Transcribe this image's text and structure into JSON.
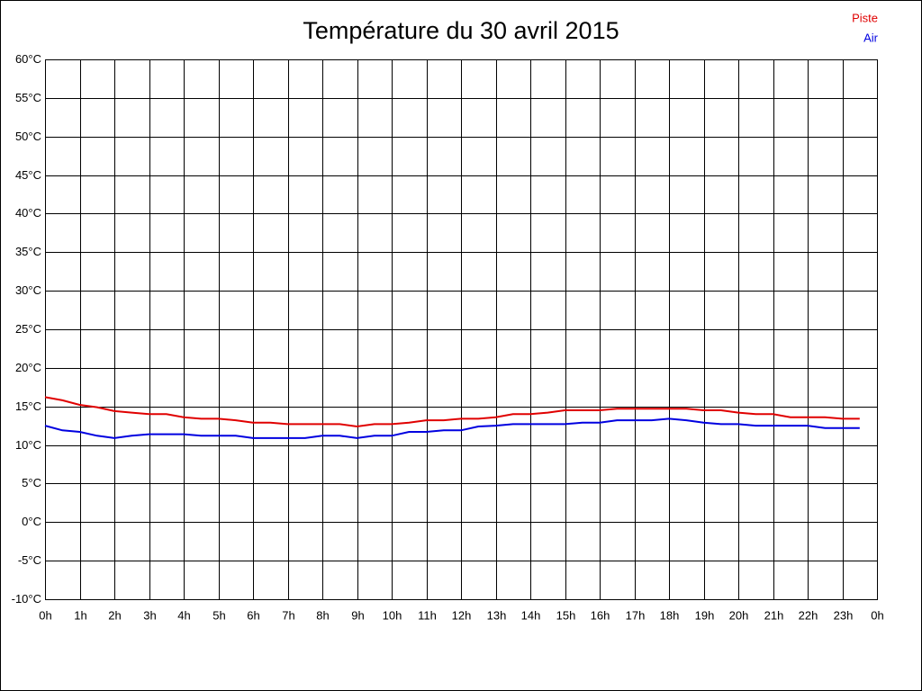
{
  "chart_data": {
    "type": "line",
    "title": "Température du 30 avril 2015",
    "x": [
      0,
      0.5,
      1,
      1.5,
      2,
      2.5,
      3,
      3.5,
      4,
      4.5,
      5,
      5.5,
      6,
      6.5,
      7,
      7.5,
      8,
      8.5,
      9,
      9.5,
      10,
      10.5,
      11,
      11.5,
      12,
      12.5,
      13,
      13.5,
      14,
      14.5,
      15,
      15.5,
      16,
      16.5,
      17,
      17.5,
      18,
      18.5,
      19,
      19.5,
      20,
      20.5,
      21,
      21.5,
      22,
      22.5,
      23,
      23.5
    ],
    "series": [
      {
        "name": "Piste",
        "color": "#e00000",
        "values": [
          16.2,
          15.8,
          15.2,
          14.9,
          14.4,
          14.2,
          14.0,
          14.0,
          13.6,
          13.4,
          13.4,
          13.2,
          12.9,
          12.9,
          12.7,
          12.7,
          12.7,
          12.7,
          12.4,
          12.7,
          12.7,
          12.9,
          13.2,
          13.2,
          13.4,
          13.4,
          13.6,
          14.0,
          14.0,
          14.2,
          14.5,
          14.5,
          14.5,
          14.7,
          14.7,
          14.7,
          14.7,
          14.7,
          14.5,
          14.5,
          14.2,
          14.0,
          14.0,
          13.6,
          13.6,
          13.6,
          13.4,
          13.4
        ]
      },
      {
        "name": "Air",
        "color": "#0000e0",
        "values": [
          12.5,
          11.9,
          11.7,
          11.2,
          10.9,
          11.2,
          11.4,
          11.4,
          11.4,
          11.2,
          11.2,
          11.2,
          10.9,
          10.9,
          10.9,
          10.9,
          11.2,
          11.2,
          10.9,
          11.2,
          11.2,
          11.7,
          11.7,
          11.9,
          11.9,
          12.4,
          12.5,
          12.7,
          12.7,
          12.7,
          12.7,
          12.9,
          12.9,
          13.2,
          13.2,
          13.2,
          13.4,
          13.2,
          12.9,
          12.7,
          12.7,
          12.5,
          12.5,
          12.5,
          12.5,
          12.2,
          12.2,
          12.2
        ]
      }
    ],
    "xlim": [
      0,
      24
    ],
    "xticks": [
      {
        "value": 0,
        "label": "0h"
      },
      {
        "value": 1,
        "label": "1h"
      },
      {
        "value": 2,
        "label": "2h"
      },
      {
        "value": 3,
        "label": "3h"
      },
      {
        "value": 4,
        "label": "4h"
      },
      {
        "value": 5,
        "label": "5h"
      },
      {
        "value": 6,
        "label": "6h"
      },
      {
        "value": 7,
        "label": "7h"
      },
      {
        "value": 8,
        "label": "8h"
      },
      {
        "value": 9,
        "label": "9h"
      },
      {
        "value": 10,
        "label": "10h"
      },
      {
        "value": 11,
        "label": "11h"
      },
      {
        "value": 12,
        "label": "12h"
      },
      {
        "value": 13,
        "label": "13h"
      },
      {
        "value": 14,
        "label": "14h"
      },
      {
        "value": 15,
        "label": "15h"
      },
      {
        "value": 16,
        "label": "16h"
      },
      {
        "value": 17,
        "label": "17h"
      },
      {
        "value": 18,
        "label": "18h"
      },
      {
        "value": 19,
        "label": "19h"
      },
      {
        "value": 20,
        "label": "20h"
      },
      {
        "value": 21,
        "label": "21h"
      },
      {
        "value": 22,
        "label": "22h"
      },
      {
        "value": 23,
        "label": "23h"
      },
      {
        "value": 24,
        "label": "0h"
      }
    ],
    "ylim": [
      -10,
      60
    ],
    "yticks": [
      {
        "value": -10,
        "label": "-10°C"
      },
      {
        "value": -5,
        "label": "-5°C"
      },
      {
        "value": 0,
        "label": "0°C"
      },
      {
        "value": 5,
        "label": "5°C"
      },
      {
        "value": 10,
        "label": "10°C"
      },
      {
        "value": 15,
        "label": "15°C"
      },
      {
        "value": 20,
        "label": "20°C"
      },
      {
        "value": 25,
        "label": "25°C"
      },
      {
        "value": 30,
        "label": "30°C"
      },
      {
        "value": 35,
        "label": "35°C"
      },
      {
        "value": 40,
        "label": "40°C"
      },
      {
        "value": 45,
        "label": "45°C"
      },
      {
        "value": 50,
        "label": "50°C"
      },
      {
        "value": 55,
        "label": "55°C"
      },
      {
        "value": 60,
        "label": "60°C"
      }
    ],
    "grid": true,
    "legend": "top-right"
  }
}
